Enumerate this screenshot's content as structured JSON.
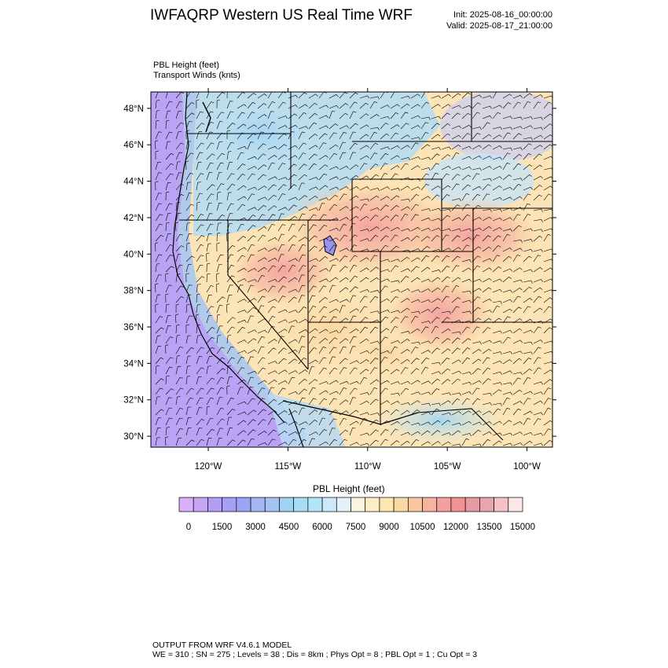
{
  "header": {
    "title": "IWFAQRP Western US Real Time WRF",
    "init": "Init: 2025-08-16_00:00:00",
    "valid": "Valid: 2025-08-17_21:00:00"
  },
  "fields": {
    "line1": "PBL Height   (feet)",
    "line2": "Transport Winds   (knts)"
  },
  "map": {
    "lat_labels": [
      "48°N",
      "46°N",
      "44°N",
      "42°N",
      "40°N",
      "38°N",
      "36°N",
      "34°N",
      "32°N",
      "30°N"
    ],
    "lon_labels": [
      "120°W",
      "115°W",
      "110°W",
      "105°W",
      "100°W"
    ],
    "lat_range": [
      29.4,
      48.9
    ],
    "lon_range": [
      -123.6,
      -98.4
    ]
  },
  "colorbar": {
    "title": "PBL Height  (feet)",
    "tick_labels": [
      "0",
      "1500",
      "3000",
      "4500",
      "6000",
      "7500",
      "9000",
      "10500",
      "12000",
      "13500",
      "15000"
    ],
    "colors": [
      "#d9b0f7",
      "#c6a5f4",
      "#b39df5",
      "#a89ef7",
      "#9da4f5",
      "#a6b6f3",
      "#a3c4f2",
      "#9fd2f3",
      "#a6dcf6",
      "#b3e4f8",
      "#cce9f7",
      "#e4f1f6",
      "#fbf4df",
      "#fcefc7",
      "#fde6b0",
      "#fbd9a2",
      "#f8c7a0",
      "#f6b39e",
      "#f59f9e",
      "#f19295",
      "#e69aa1",
      "#e8a6ab",
      "#f4c2c4",
      "#fce6e6"
    ]
  },
  "footer": {
    "line1": "OUTPUT FROM WRF V4.6.1 MODEL",
    "line2": "WE = 310 ; SN = 275 ; Levels = 38 ; Dis = 8km ; Phys Opt = 8 ; PBL Opt = 1 ; Cu Opt = 3"
  }
}
